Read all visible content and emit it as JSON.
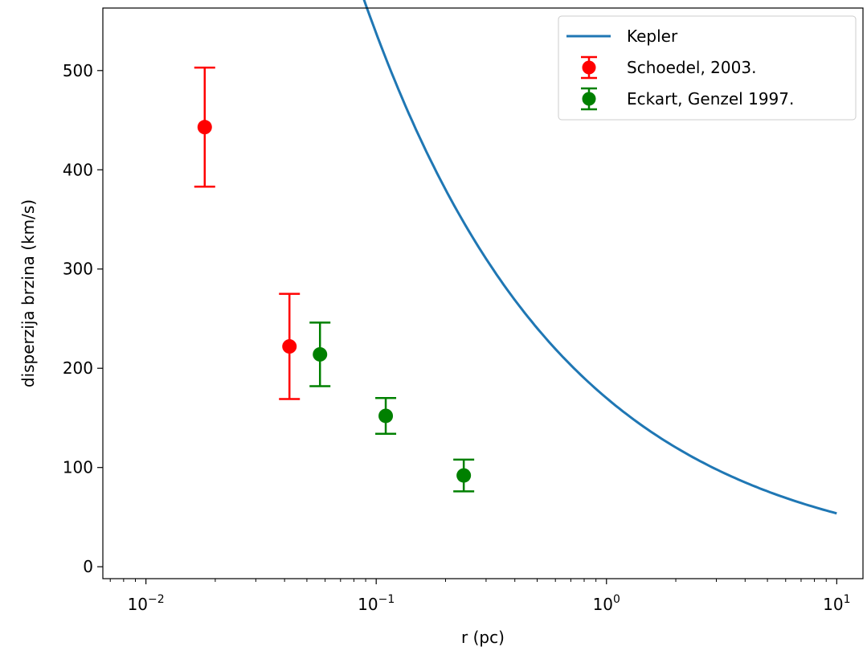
{
  "chart_data": {
    "type": "scatter",
    "title": "",
    "xlabel": "r (pc)",
    "ylabel": "disperzija brzina (km/s)",
    "xscale": "log",
    "xlim": [
      0.0065,
      13
    ],
    "ylim": [
      -12,
      563
    ],
    "xticks": [
      {
        "value": 0.01,
        "base": "10",
        "exp": "−2"
      },
      {
        "value": 0.1,
        "base": "10",
        "exp": "−1"
      },
      {
        "value": 1,
        "base": "10",
        "exp": "0"
      },
      {
        "value": 10,
        "base": "10",
        "exp": "1"
      }
    ],
    "yticks": [
      0,
      100,
      200,
      300,
      400,
      500
    ],
    "grid": false,
    "legend_position": "top-right",
    "series": [
      {
        "name": "Kepler",
        "kind": "line",
        "color": "#1f77b4",
        "formula_note": "v = 170 / sqrt(r), r from 0.009 to 10",
        "x_range": [
          0.009,
          10
        ],
        "k": 170
      },
      {
        "name": "Schoedel, 2003.",
        "kind": "errorbar",
        "color": "#ff0000",
        "points": [
          {
            "x": 0.018,
            "y": 443,
            "err": 60
          },
          {
            "x": 0.042,
            "y": 222,
            "err": 53
          }
        ]
      },
      {
        "name": "Eckart, Genzel 1997.",
        "kind": "errorbar",
        "color": "#008000",
        "points": [
          {
            "x": 0.057,
            "y": 214,
            "err": 32
          },
          {
            "x": 0.11,
            "y": 152,
            "err": 18
          },
          {
            "x": 0.24,
            "y": 92,
            "err": 16
          }
        ]
      }
    ]
  }
}
